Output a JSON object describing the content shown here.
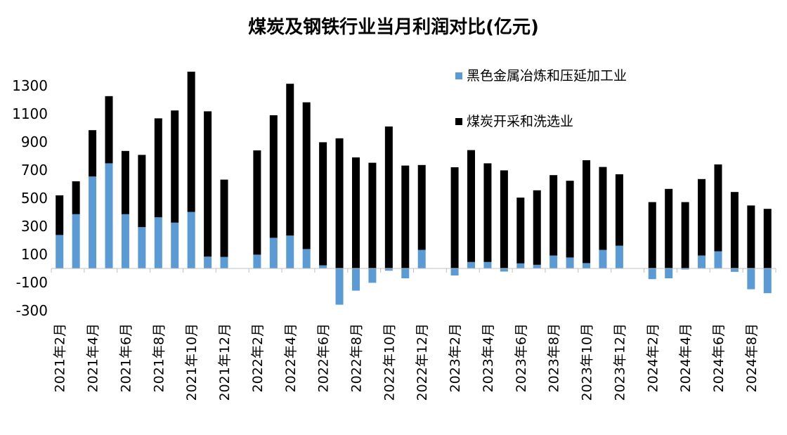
{
  "chart_data": {
    "type": "bar",
    "stacked": true,
    "title": "煤炭及钢铁行业当月利润对比(亿元)",
    "xlabel": "",
    "ylabel": "",
    "ylim": [
      -300,
      1400
    ],
    "yticks": [
      -300,
      -100,
      100,
      300,
      500,
      700,
      900,
      1100,
      1300
    ],
    "ytick_labels": [
      "-300",
      "-100",
      "100",
      "300",
      "500",
      "700",
      "900",
      "1100",
      "1300"
    ],
    "legend_position": "top-right",
    "grid": false,
    "categories": [
      "2021年2月",
      "2021年3月",
      "2021年4月",
      "2021年5月",
      "2021年6月",
      "2021年7月",
      "2021年8月",
      "2021年9月",
      "2021年10月",
      "2021年11月",
      "2021年12月",
      "2022年1月",
      "2022年2月",
      "2022年3月",
      "2022年4月",
      "2022年5月",
      "2022年6月",
      "2022年7月",
      "2022年8月",
      "2022年9月",
      "2022年10月",
      "2022年11月",
      "2022年12月",
      "2023年1月",
      "2023年2月",
      "2023年3月",
      "2023年4月",
      "2023年5月",
      "2023年6月",
      "2023年7月",
      "2023年8月",
      "2023年9月",
      "2023年10月",
      "2023年11月",
      "2023年12月",
      "2024年1月",
      "2024年2月",
      "2024年3月",
      "2024年4月",
      "2024年5月",
      "2024年6月",
      "2024年7月",
      "2024年8月",
      "2024年9月"
    ],
    "tick_labels": [
      "2021年2月",
      "",
      "2021年4月",
      "",
      "2021年6月",
      "",
      "2021年8月",
      "",
      "2021年10月",
      "",
      "2021年12月",
      "",
      "2022年2月",
      "",
      "2022年4月",
      "",
      "2022年6月",
      "",
      "2022年8月",
      "",
      "2022年10月",
      "",
      "2022年12月",
      "",
      "2023年2月",
      "",
      "2023年4月",
      "",
      "2023年6月",
      "",
      "2023年8月",
      "",
      "2023年10月",
      "",
      "2023年12月",
      "",
      "2024年2月",
      "",
      "2024年4月",
      "",
      "2024年6月",
      "",
      "2024年8月",
      ""
    ],
    "series": [
      {
        "name": "黑色金属冶炼和压延加工业",
        "color": "#5b9bd5",
        "values": [
          238,
          386,
          654,
          748,
          386,
          294,
          364,
          326,
          402,
          84,
          82,
          null,
          98,
          218,
          234,
          138,
          22,
          -258,
          -158,
          -102,
          -16,
          -70,
          132,
          null,
          -50,
          46,
          46,
          -22,
          36,
          26,
          92,
          78,
          38,
          132,
          162,
          null,
          -76,
          -70,
          -8,
          92,
          122,
          -24,
          -148,
          -176
        ]
      },
      {
        "name": "煤炭开采和洗选业",
        "color": "#000000",
        "values": [
          282,
          234,
          330,
          478,
          450,
          514,
          704,
          798,
          998,
          1034,
          550,
          null,
          742,
          872,
          1080,
          1044,
          876,
          926,
          790,
          752,
          1010,
          732,
          604,
          null,
          720,
          796,
          702,
          698,
          468,
          530,
          572,
          546,
          732,
          590,
          508,
          null,
          472,
          566,
          472,
          544,
          618,
          544,
          448,
          424
        ]
      }
    ]
  }
}
